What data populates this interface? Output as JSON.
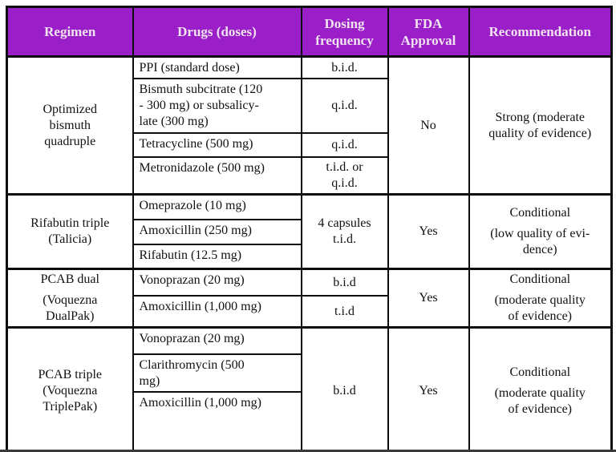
{
  "colors": {
    "header_bg": "#9B1FC9",
    "header_text": "#F1E3EF",
    "border": "#0C0C0C"
  },
  "table": {
    "columns": [
      "Regimen",
      "Drugs (doses)",
      "Dosing\nfrequency",
      "FDA\nApproval",
      "Recommendation"
    ],
    "sections": [
      {
        "regimen": [
          "Optimized\nbismuth\nquadruple"
        ],
        "fda_approval": "No",
        "recommendation": [
          "Strong (moderate\nquality of evidence)"
        ],
        "dosing_span": null,
        "rows": [
          {
            "drug": "PPI (standard dose)",
            "dose_freq": "b.i.d."
          },
          {
            "drug": "Bismuth subcitrate (120\n- 300 mg) or subsalicy-\nlate (300 mg)",
            "dose_freq": "q.i.d."
          },
          {
            "drug": "Tetracycline (500 mg)",
            "dose_freq": "q.i.d."
          },
          {
            "drug": "Metronidazole (500 mg)",
            "dose_freq": "t.i.d. or\nq.i.d."
          }
        ]
      },
      {
        "regimen": [
          "Rifabutin triple\n(Talicia)"
        ],
        "fda_approval": "Yes",
        "recommendation": [
          "Conditional",
          "(low quality of evi-\ndence)"
        ],
        "dosing_span": "4 capsules\nt.i.d.",
        "rows": [
          {
            "drug": "Omeprazole (10 mg)"
          },
          {
            "drug": "Amoxicillin (250 mg)"
          },
          {
            "drug": "Rifabutin (12.5 mg)"
          }
        ]
      },
      {
        "regimen": [
          "PCAB dual",
          "(Voquezna\nDualPak)"
        ],
        "fda_approval": "Yes",
        "recommendation": [
          "Conditional",
          "(moderate quality\nof evidence)"
        ],
        "dosing_span": null,
        "rows": [
          {
            "drug": "Vonoprazan (20 mg)",
            "dose_freq": "b.i.d"
          },
          {
            "drug": "Amoxicillin (1,000 mg)",
            "dose_freq": "t.i.d"
          }
        ]
      },
      {
        "regimen": [
          "PCAB triple\n(Voquezna\nTriplePak)"
        ],
        "fda_approval": "Yes",
        "recommendation": [
          "Conditional",
          "(moderate quality\nof evidence)"
        ],
        "dosing_span": "b.i.d",
        "rows": [
          {
            "drug": "Vonoprazan (20 mg)"
          },
          {
            "drug": "Clarithromycin (500\nmg)"
          },
          {
            "drug": "Amoxicillin (1,000 mg)"
          }
        ]
      }
    ]
  }
}
